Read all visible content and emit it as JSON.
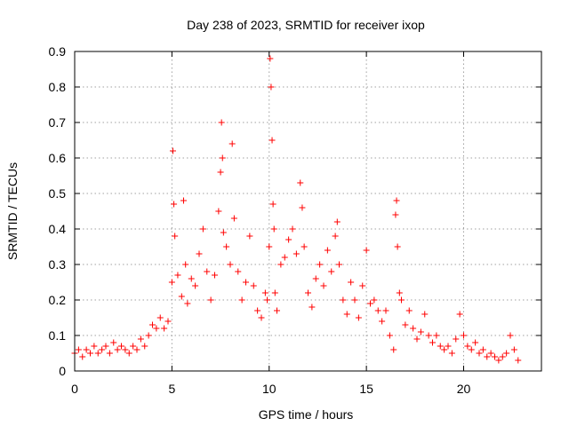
{
  "chart_data": {
    "type": "scatter",
    "title": "Day 238 of 2023, SRMTID for receiver ixop",
    "xlabel": "GPS time / hours",
    "ylabel": "SRMTID / TECUs",
    "xlim": [
      0,
      24
    ],
    "ylim": [
      0,
      0.9
    ],
    "x_ticks": [
      0,
      5,
      10,
      15,
      20
    ],
    "x_tick_labels": [
      "0",
      "5",
      "10",
      "15",
      "20"
    ],
    "y_ticks": [
      0,
      0.1,
      0.2,
      0.3,
      0.4,
      0.5,
      0.6,
      0.7,
      0.8,
      0.9
    ],
    "y_tick_labels": [
      "0",
      "0.1",
      "0.2",
      "0.3",
      "0.4",
      "0.5",
      "0.6",
      "0.7",
      "0.8",
      "0.9"
    ],
    "grid": true,
    "marker": "plus",
    "color": "#ff0000",
    "series": [
      {
        "name": "SRMTID",
        "x": [
          0.0,
          0.2,
          0.4,
          0.6,
          0.8,
          1.0,
          1.2,
          1.4,
          1.6,
          1.8,
          2.0,
          2.2,
          2.4,
          2.6,
          2.8,
          3.0,
          3.2,
          3.4,
          3.6,
          3.8,
          4.0,
          4.2,
          4.4,
          4.6,
          4.8,
          5.0,
          5.05,
          5.1,
          5.15,
          5.3,
          5.5,
          5.6,
          5.7,
          5.8,
          6.0,
          6.2,
          6.4,
          6.6,
          6.8,
          7.0,
          7.2,
          7.4,
          7.5,
          7.55,
          7.6,
          7.65,
          7.8,
          8.0,
          8.1,
          8.2,
          8.4,
          8.6,
          8.8,
          9.0,
          9.2,
          9.4,
          9.6,
          9.8,
          9.9,
          10.0,
          10.05,
          10.1,
          10.15,
          10.2,
          10.25,
          10.3,
          10.4,
          10.6,
          10.8,
          11.0,
          11.2,
          11.4,
          11.6,
          11.7,
          11.8,
          12.0,
          12.2,
          12.4,
          12.6,
          12.8,
          13.0,
          13.2,
          13.4,
          13.5,
          13.6,
          13.8,
          14.0,
          14.2,
          14.4,
          14.6,
          14.8,
          15.0,
          15.2,
          15.4,
          15.6,
          15.8,
          16.0,
          16.2,
          16.4,
          16.5,
          16.55,
          16.6,
          16.7,
          16.8,
          17.0,
          17.2,
          17.4,
          17.6,
          17.8,
          18.0,
          18.2,
          18.4,
          18.6,
          18.8,
          19.0,
          19.2,
          19.4,
          19.6,
          19.8,
          20.0,
          20.2,
          20.4,
          20.6,
          20.8,
          21.0,
          21.2,
          21.4,
          21.6,
          21.8,
          22.0,
          22.2,
          22.4,
          22.6,
          22.8
        ],
        "y": [
          0.05,
          0.06,
          0.04,
          0.06,
          0.05,
          0.07,
          0.05,
          0.06,
          0.07,
          0.05,
          0.08,
          0.06,
          0.07,
          0.06,
          0.05,
          0.07,
          0.06,
          0.09,
          0.07,
          0.1,
          0.13,
          0.12,
          0.15,
          0.12,
          0.14,
          0.25,
          0.62,
          0.47,
          0.38,
          0.27,
          0.21,
          0.48,
          0.3,
          0.19,
          0.26,
          0.24,
          0.33,
          0.4,
          0.28,
          0.2,
          0.27,
          0.45,
          0.56,
          0.7,
          0.6,
          0.39,
          0.35,
          0.3,
          0.64,
          0.43,
          0.28,
          0.2,
          0.25,
          0.38,
          0.24,
          0.17,
          0.15,
          0.22,
          0.2,
          0.35,
          0.88,
          0.8,
          0.65,
          0.47,
          0.4,
          0.22,
          0.17,
          0.3,
          0.32,
          0.37,
          0.4,
          0.33,
          0.53,
          0.46,
          0.35,
          0.22,
          0.18,
          0.26,
          0.3,
          0.24,
          0.34,
          0.28,
          0.38,
          0.42,
          0.3,
          0.2,
          0.16,
          0.25,
          0.2,
          0.15,
          0.24,
          0.34,
          0.19,
          0.2,
          0.17,
          0.14,
          0.17,
          0.1,
          0.06,
          0.44,
          0.48,
          0.35,
          0.22,
          0.2,
          0.13,
          0.17,
          0.12,
          0.09,
          0.11,
          0.16,
          0.1,
          0.08,
          0.1,
          0.07,
          0.06,
          0.07,
          0.05,
          0.09,
          0.16,
          0.1,
          0.07,
          0.06,
          0.08,
          0.05,
          0.06,
          0.04,
          0.05,
          0.04,
          0.03,
          0.04,
          0.05,
          0.1,
          0.06,
          0.03
        ]
      }
    ]
  }
}
